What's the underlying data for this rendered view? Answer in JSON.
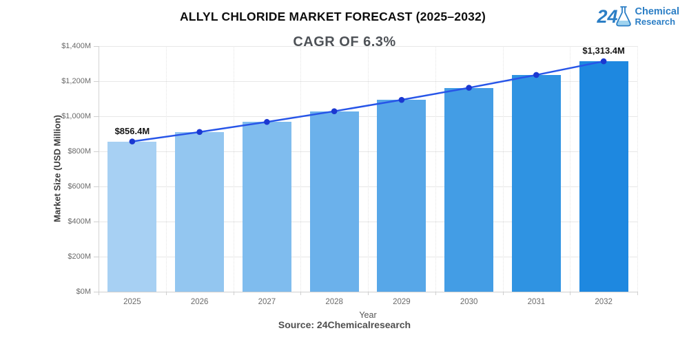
{
  "header": {
    "title": "ALLYL CHLORIDE MARKET FORECAST (2025–2032)",
    "logo": {
      "number": "24",
      "line1": "Chemical",
      "line2": "Research",
      "color": "#2b7ec5"
    }
  },
  "chart_data": {
    "type": "bar",
    "title": "ALLYL CHLORIDE MARKET FORECAST (2025–2032)",
    "subtitle": "CAGR OF 6.3%",
    "xlabel": "Year",
    "ylabel": "Market Size (USD Million)",
    "categories": [
      "2025",
      "2026",
      "2027",
      "2028",
      "2029",
      "2030",
      "2031",
      "2032"
    ],
    "values": [
      856.4,
      910.4,
      967.7,
      1028.7,
      1093.5,
      1162.4,
      1235.6,
      1313.4
    ],
    "point_labels": [
      "$856.4M",
      "",
      "",
      "",
      "",
      "",
      "",
      "$1,313.4M"
    ],
    "ylim": [
      0,
      1400
    ],
    "yticks": [
      "$0M",
      "$200M",
      "$400M",
      "$600M",
      "$800M",
      "$1,000M",
      "$1,200M",
      "$1,400M"
    ],
    "bar_colors": [
      "#a7d0f3",
      "#93c6f0",
      "#7fbcee",
      "#6bb1eb",
      "#57a7e8",
      "#439de5",
      "#2f93e2",
      "#1e88e0"
    ],
    "line_color": "#2755e8",
    "marker_color": "#1b38d1",
    "grid": true,
    "legend": "none"
  },
  "footer": {
    "source": "Source: 24Chemicalresearch"
  }
}
